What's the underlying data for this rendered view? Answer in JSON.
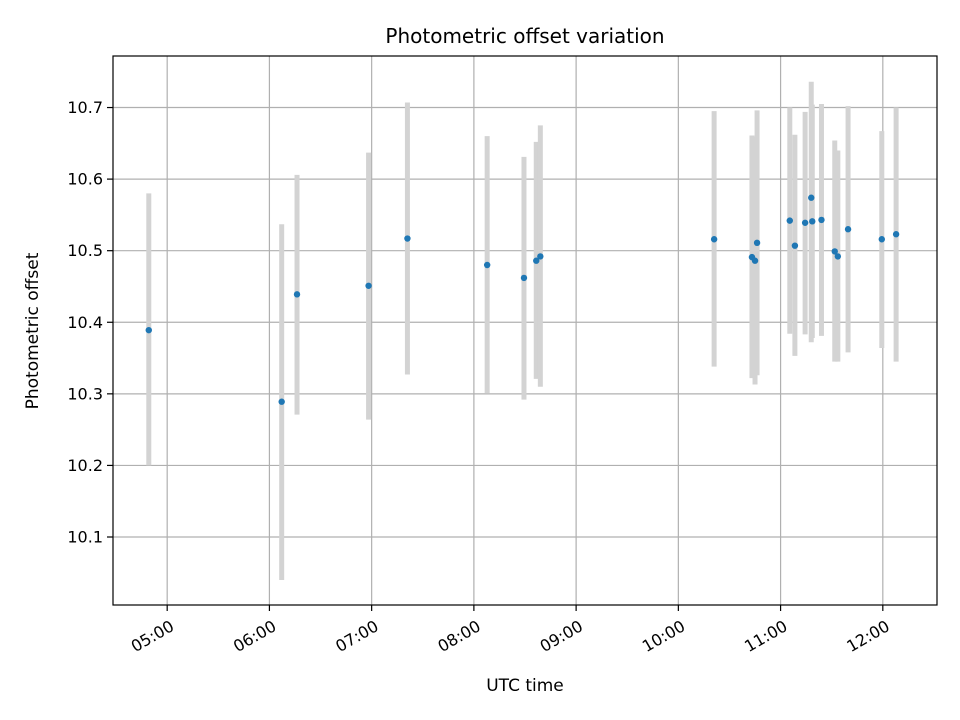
{
  "chart_data": {
    "type": "scatter",
    "title": "Photometric offset variation",
    "xlabel": "UTC time",
    "ylabel": "Photometric offset",
    "grid": true,
    "x_unit": "hours UTC",
    "xlim": [
      4.47,
      12.53
    ],
    "ylim": [
      10.005,
      10.772
    ],
    "x_ticks": [
      {
        "value": 5,
        "label": "05:00"
      },
      {
        "value": 6,
        "label": "06:00"
      },
      {
        "value": 7,
        "label": "07:00"
      },
      {
        "value": 8,
        "label": "08:00"
      },
      {
        "value": 9,
        "label": "09:00"
      },
      {
        "value": 10,
        "label": "10:00"
      },
      {
        "value": 11,
        "label": "11:00"
      },
      {
        "value": 12,
        "label": "12:00"
      }
    ],
    "y_ticks": [
      {
        "value": 10.1,
        "label": "10.1"
      },
      {
        "value": 10.2,
        "label": "10.2"
      },
      {
        "value": 10.3,
        "label": "10.3"
      },
      {
        "value": 10.4,
        "label": "10.4"
      },
      {
        "value": 10.5,
        "label": "10.5"
      },
      {
        "value": 10.6,
        "label": "10.6"
      },
      {
        "value": 10.7,
        "label": "10.7"
      }
    ],
    "colors": {
      "point": "#1f77b4",
      "errorbar": "#d3d3d3",
      "grid": "#b0b0b0"
    },
    "points": [
      {
        "x": 4.82,
        "y": 10.389,
        "ylow": 10.2,
        "yhigh": 10.58
      },
      {
        "x": 6.12,
        "y": 10.289,
        "ylow": 10.04,
        "yhigh": 10.537
      },
      {
        "x": 6.27,
        "y": 10.439,
        "ylow": 10.271,
        "yhigh": 10.606
      },
      {
        "x": 6.97,
        "y": 10.451,
        "ylow": 10.264,
        "yhigh": 10.637
      },
      {
        "x": 7.35,
        "y": 10.517,
        "ylow": 10.327,
        "yhigh": 10.707
      },
      {
        "x": 8.13,
        "y": 10.48,
        "ylow": 10.301,
        "yhigh": 10.66
      },
      {
        "x": 8.49,
        "y": 10.462,
        "ylow": 10.292,
        "yhigh": 10.631
      },
      {
        "x": 8.61,
        "y": 10.486,
        "ylow": 10.321,
        "yhigh": 10.652
      },
      {
        "x": 8.65,
        "y": 10.492,
        "ylow": 10.31,
        "yhigh": 10.675
      },
      {
        "x": 10.35,
        "y": 10.516,
        "ylow": 10.338,
        "yhigh": 10.695
      },
      {
        "x": 10.72,
        "y": 10.491,
        "ylow": 10.322,
        "yhigh": 10.661
      },
      {
        "x": 10.75,
        "y": 10.486,
        "ylow": 10.313,
        "yhigh": 10.659
      },
      {
        "x": 10.77,
        "y": 10.511,
        "ylow": 10.326,
        "yhigh": 10.696
      },
      {
        "x": 11.09,
        "y": 10.542,
        "ylow": 10.384,
        "yhigh": 10.7
      },
      {
        "x": 11.14,
        "y": 10.507,
        "ylow": 10.353,
        "yhigh": 10.662
      },
      {
        "x": 11.24,
        "y": 10.539,
        "ylow": 10.383,
        "yhigh": 10.694
      },
      {
        "x": 11.3,
        "y": 10.574,
        "ylow": 10.372,
        "yhigh": 10.736
      },
      {
        "x": 11.31,
        "y": 10.541,
        "ylow": 10.378,
        "yhigh": 10.704
      },
      {
        "x": 11.4,
        "y": 10.543,
        "ylow": 10.381,
        "yhigh": 10.705
      },
      {
        "x": 11.53,
        "y": 10.499,
        "ylow": 10.345,
        "yhigh": 10.654
      },
      {
        "x": 11.56,
        "y": 10.492,
        "ylow": 10.345,
        "yhigh": 10.64
      },
      {
        "x": 11.66,
        "y": 10.53,
        "ylow": 10.358,
        "yhigh": 10.702
      },
      {
        "x": 11.99,
        "y": 10.516,
        "ylow": 10.364,
        "yhigh": 10.667
      },
      {
        "x": 12.13,
        "y": 10.523,
        "ylow": 10.345,
        "yhigh": 10.7
      }
    ]
  }
}
